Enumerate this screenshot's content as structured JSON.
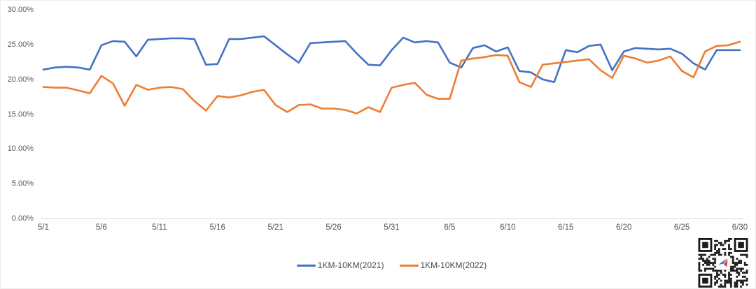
{
  "chart_data": {
    "type": "line",
    "title": "",
    "x": [
      "5/1",
      "5/2",
      "5/3",
      "5/4",
      "5/5",
      "5/6",
      "5/7",
      "5/8",
      "5/9",
      "5/10",
      "5/11",
      "5/12",
      "5/13",
      "5/14",
      "5/15",
      "5/16",
      "5/17",
      "5/18",
      "5/19",
      "5/20",
      "5/21",
      "5/22",
      "5/23",
      "5/24",
      "5/25",
      "5/26",
      "5/27",
      "5/28",
      "5/29",
      "5/30",
      "5/31",
      "6/1",
      "6/2",
      "6/3",
      "6/4",
      "6/5",
      "6/6",
      "6/7",
      "6/8",
      "6/9",
      "6/10",
      "6/11",
      "6/12",
      "6/13",
      "6/14",
      "6/15",
      "6/16",
      "6/17",
      "6/18",
      "6/19",
      "6/20",
      "6/21",
      "6/22",
      "6/23",
      "6/24",
      "6/25",
      "6/26",
      "6/27",
      "6/28",
      "6/29",
      "6/30"
    ],
    "series": [
      {
        "name": "1KM-10KM(2021)",
        "color": "#4472C4",
        "values": [
          21.4,
          21.7,
          21.8,
          21.7,
          21.4,
          24.9,
          25.5,
          25.4,
          23.3,
          25.7,
          25.8,
          25.9,
          25.9,
          25.8,
          22.1,
          22.2,
          25.8,
          25.8,
          26.0,
          26.2,
          24.9,
          23.6,
          22.4,
          25.2,
          25.3,
          25.4,
          25.5,
          23.7,
          22.1,
          22.0,
          24.2,
          26.0,
          25.3,
          25.5,
          25.3,
          22.4,
          21.7,
          24.5,
          24.9,
          24.0,
          24.6,
          21.2,
          21.0,
          20.0,
          19.6,
          24.2,
          23.9,
          24.8,
          25.0,
          21.3,
          24.0,
          24.5,
          24.4,
          24.3,
          24.4,
          23.7,
          22.3,
          21.4,
          24.2,
          24.2,
          24.2
        ]
      },
      {
        "name": "1KM-10KM(2022)",
        "color": "#ED7D31",
        "values": [
          18.9,
          18.8,
          18.8,
          18.4,
          18.0,
          20.5,
          19.4,
          16.2,
          19.2,
          18.5,
          18.8,
          18.9,
          18.6,
          16.9,
          15.5,
          17.6,
          17.4,
          17.7,
          18.2,
          18.5,
          16.3,
          15.3,
          16.3,
          16.4,
          15.8,
          15.8,
          15.6,
          15.1,
          16.0,
          15.3,
          18.8,
          19.2,
          19.5,
          17.8,
          17.2,
          17.2,
          22.7,
          23.0,
          23.2,
          23.5,
          23.4,
          19.6,
          18.9,
          22.1,
          22.3,
          22.5,
          22.7,
          22.9,
          21.3,
          20.2,
          23.4,
          23.0,
          22.4,
          22.7,
          23.3,
          21.2,
          20.3,
          24.0,
          24.8,
          24.9,
          25.4
        ]
      }
    ],
    "ylim": [
      0,
      30
    ],
    "y_ticks": [
      {
        "value": 0,
        "label": "0.00%"
      },
      {
        "value": 5,
        "label": "5.00%"
      },
      {
        "value": 10,
        "label": "10.00%"
      },
      {
        "value": 15,
        "label": "15.00%"
      },
      {
        "value": 20,
        "label": "20.00%"
      },
      {
        "value": 25,
        "label": "25.00%"
      },
      {
        "value": 30,
        "label": "30.00%"
      }
    ],
    "x_tick_every": 5,
    "x_tick_labels": [
      "5/1",
      "5/6",
      "5/11",
      "5/16",
      "5/21",
      "5/26",
      "5/31",
      "6/5",
      "6/10",
      "6/15",
      "6/20",
      "6/25",
      "6/30"
    ],
    "grid": false,
    "legend_position": "bottom",
    "axis_color": "#D9D9D9",
    "tick_text_color": "#595959"
  },
  "qr": {
    "logo_colors": {
      "blue": "#3A6BD0",
      "red": "#E23B3B"
    }
  }
}
